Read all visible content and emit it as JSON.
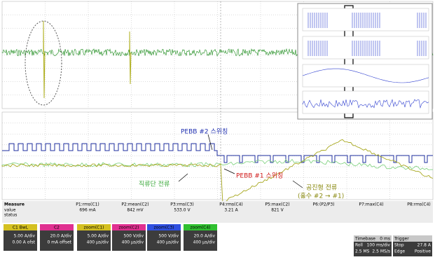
{
  "annotations": [
    {
      "text": "PEBB #2 스위칭",
      "color": "#1f2fb0"
    },
    {
      "text": "PEBB #1 스위칭",
      "color": "#d01818"
    },
    {
      "text": "직류단 전류",
      "color": "#3aa83a"
    },
    {
      "text": "공진형 전류",
      "color": "#8a8a10"
    },
    {
      "text": "(홀수 #2 → #1)",
      "color": "#8a8a10"
    }
  ],
  "measure": {
    "title": "Measure",
    "row_labels": [
      "value",
      "status"
    ],
    "columns": [
      {
        "label": "P1:rms(C1)",
        "value": "696 mA"
      },
      {
        "label": "P2:mean(C2)",
        "value": "842 mV"
      },
      {
        "label": "P3:rms(C3)",
        "value": "533.0 V"
      },
      {
        "label": "P4:rms(C4)",
        "value": "3.21 A"
      },
      {
        "label": "P5:max(C2)",
        "value": "821 V"
      },
      {
        "label": "P6:(P2/P3)",
        "value": ""
      },
      {
        "label": "P7:max(C4)",
        "value": ""
      },
      {
        "label": "P8:rms(C4)",
        "value": ""
      }
    ]
  },
  "channels": [
    {
      "name": "C1 BwL",
      "color": "#d4c020",
      "lines": [
        "5.00 A/div",
        "0.00 A ofst"
      ]
    },
    {
      "name": "C2",
      "color": "#e03090",
      "lines": [
        "20.0 A/div",
        "0 mA offset"
      ]
    },
    {
      "name": "zoom(C1)",
      "color": "#d4c020",
      "lines": [
        "5.00 A/div",
        "400 μs/div"
      ]
    },
    {
      "name": "zoom(C2)",
      "color": "#e03090",
      "lines": [
        "500 V/div",
        "400 μs/div"
      ]
    },
    {
      "name": "zoom(C3)",
      "color": "#3050e0",
      "lines": [
        "500 V/div",
        "400 μs/div"
      ]
    },
    {
      "name": "zoom(C4)",
      "color": "#30c030",
      "lines": [
        "20.0 A/div",
        "400 μs/div"
      ]
    }
  ],
  "timebase": {
    "rows": [
      [
        "Timebase",
        "0 ms"
      ],
      [
        "Roll",
        "100 ms/div"
      ],
      [
        "2.5 MS",
        "2.5 MS/s"
      ]
    ]
  },
  "trigger": {
    "rows": [
      [
        "Trigger",
        ""
      ],
      [
        "Stop",
        "27.8 A"
      ],
      [
        "Edge",
        "Positive"
      ]
    ]
  }
}
